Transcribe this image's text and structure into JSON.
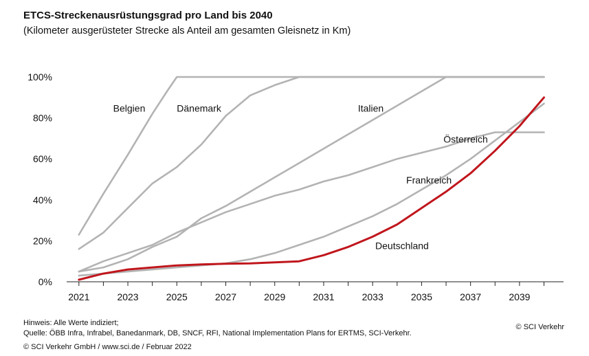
{
  "chart_data": {
    "type": "line",
    "title": "ETCS-Streckenausrüstungsgrad pro Land bis 2040",
    "subtitle": "(Kilometer ausgerüsteter Strecke als Anteil am gesamten Gleisnetz in Km)",
    "xlabel": "",
    "ylabel": "",
    "xlim": [
      2020.5,
      2040.8
    ],
    "ylim": [
      0,
      100
    ],
    "x_ticks": [
      "2021",
      "2023",
      "2025",
      "2027",
      "2029",
      "2031",
      "2033",
      "2035",
      "2037",
      "2039"
    ],
    "y_ticks": [
      "0%",
      "20%",
      "40%",
      "60%",
      "80%",
      "100%"
    ],
    "grid": false,
    "series": [
      {
        "name": "Belgien",
        "color": "#b3b3b3",
        "x": [
          2021,
          2022,
          2023,
          2024,
          2024.6,
          2025,
          2026,
          2030,
          2035,
          2040
        ],
        "y": [
          23,
          43,
          62,
          82,
          93,
          100,
          100,
          100,
          100,
          100
        ]
      },
      {
        "name": "Dänemark",
        "color": "#b3b3b3",
        "x": [
          2021,
          2022,
          2023,
          2024,
          2025,
          2026,
          2027,
          2028,
          2029,
          2030,
          2035,
          2040
        ],
        "y": [
          16,
          24,
          36,
          48,
          56,
          67,
          81,
          91,
          96,
          100,
          100,
          100
        ]
      },
      {
        "name": "Italien",
        "color": "#b3b3b3",
        "x": [
          2021,
          2022,
          2023,
          2024,
          2025,
          2026,
          2027,
          2028,
          2029,
          2030,
          2031,
          2032,
          2033,
          2034,
          2035,
          2036,
          2040
        ],
        "y": [
          5,
          7,
          11,
          17,
          22,
          31,
          37,
          44,
          51,
          58,
          65,
          72,
          79,
          86,
          93,
          100,
          100
        ]
      },
      {
        "name": "Österreich",
        "color": "#b3b3b3",
        "x": [
          2021,
          2022,
          2023,
          2024,
          2025,
          2026,
          2027,
          2028,
          2029,
          2030,
          2031,
          2032,
          2033,
          2034,
          2035,
          2036,
          2037,
          2038,
          2039,
          2040
        ],
        "y": [
          5,
          10,
          14,
          18,
          24,
          29,
          34,
          38,
          42,
          45,
          49,
          52,
          56,
          60,
          63,
          66,
          70,
          73,
          73,
          73
        ]
      },
      {
        "name": "Frankreich",
        "color": "#b3b3b3",
        "x": [
          2021,
          2022,
          2023,
          2024,
          2025,
          2026,
          2027,
          2028,
          2029,
          2030,
          2031,
          2032,
          2033,
          2034,
          2035,
          2036,
          2037,
          2038,
          2039,
          2040
        ],
        "y": [
          3,
          4,
          5,
          6,
          7,
          8,
          9,
          11,
          14,
          18,
          22,
          27,
          32,
          38,
          45,
          52,
          60,
          69,
          78,
          87
        ]
      },
      {
        "name": "Deutschland",
        "color": "#c0161c",
        "x": [
          2021,
          2022,
          2023,
          2024,
          2025,
          2026,
          2027,
          2028,
          2029,
          2030,
          2031,
          2032,
          2033,
          2034,
          2035,
          2036,
          2037,
          2038,
          2039,
          2040
        ],
        "y": [
          1,
          4,
          6,
          7,
          8,
          8.5,
          8.8,
          9,
          9.5,
          10,
          13,
          17,
          22,
          28,
          36,
          44,
          53,
          64,
          76,
          90
        ]
      }
    ]
  },
  "footer": {
    "note": "Hinweis: Alle Werte indiziert;",
    "source": "Quelle: ÖBB Infra, Infrabel, Banedanmark, DB, SNCF, RFI, National Implementation Plans for ERTMS, SCI-Verkehr.",
    "credit": "© SCI Verkehr GmbH / www.sci.de / Februar 2022",
    "copyright": "© SCI Verkehr"
  }
}
